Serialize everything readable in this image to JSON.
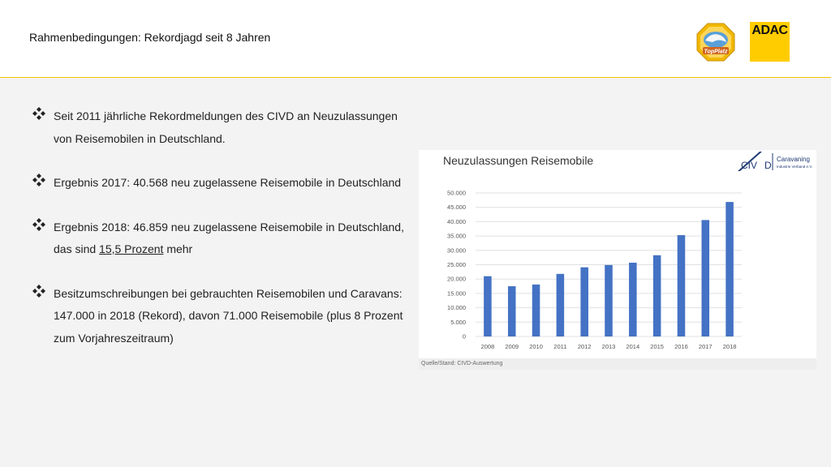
{
  "header": {
    "title": "Rahmenbedingungen: Rekordjagd seit 8 Jahren",
    "logo_topplatz_text": "TopPlatz",
    "logo_adac_text": "ADAC",
    "accent_color": "#f2c200"
  },
  "bullets": [
    {
      "text": "Seit 2011 jährliche Rekordmeldungen des CIVD an Neuzulassungen von Reisemobilen in Deutschland."
    },
    {
      "text": "Ergebnis 2017: 40.568 neu zugelassene Reisemobile in Deutschland"
    },
    {
      "text_before": "Ergebnis 2018: 46.859 neu zugelassene Reisemobile in Deutschland, das sind ",
      "link": "15,5 Prozent",
      "text_after": " mehr"
    },
    {
      "text": "Besitzumschreibungen bei gebrauchten Reisemobilen und Caravans: 147.000 in 2018 (Rekord), davon 71.000 Reisemobile (plus 8 Prozent zum Vorjahreszeitraum)"
    }
  ],
  "chart_data": {
    "type": "bar",
    "title": "Neuzulassungen Reisemobile",
    "categories": [
      "2008",
      "2009",
      "2010",
      "2011",
      "2012",
      "2013",
      "2014",
      "2015",
      "2016",
      "2017",
      "2018"
    ],
    "values": [
      21000,
      17500,
      18100,
      21800,
      24100,
      24900,
      25700,
      28300,
      35300,
      40568,
      46859
    ],
    "ylim": [
      0,
      50000
    ],
    "yticks": [
      "0",
      "5.000",
      "10.000",
      "15.000",
      "20.000",
      "25.000",
      "30.000",
      "35.000",
      "40.000",
      "45.000",
      "50.000"
    ],
    "xlabel": "",
    "ylabel": "",
    "grid": true,
    "bar_color": "#4472c4",
    "source": "Quelle/Stand: CIVD-Auswertung",
    "civd_logo": {
      "left": "CIV",
      "right": "D",
      "name": "Caravaning",
      "subtitle": "Industrie Verband e.V."
    }
  }
}
